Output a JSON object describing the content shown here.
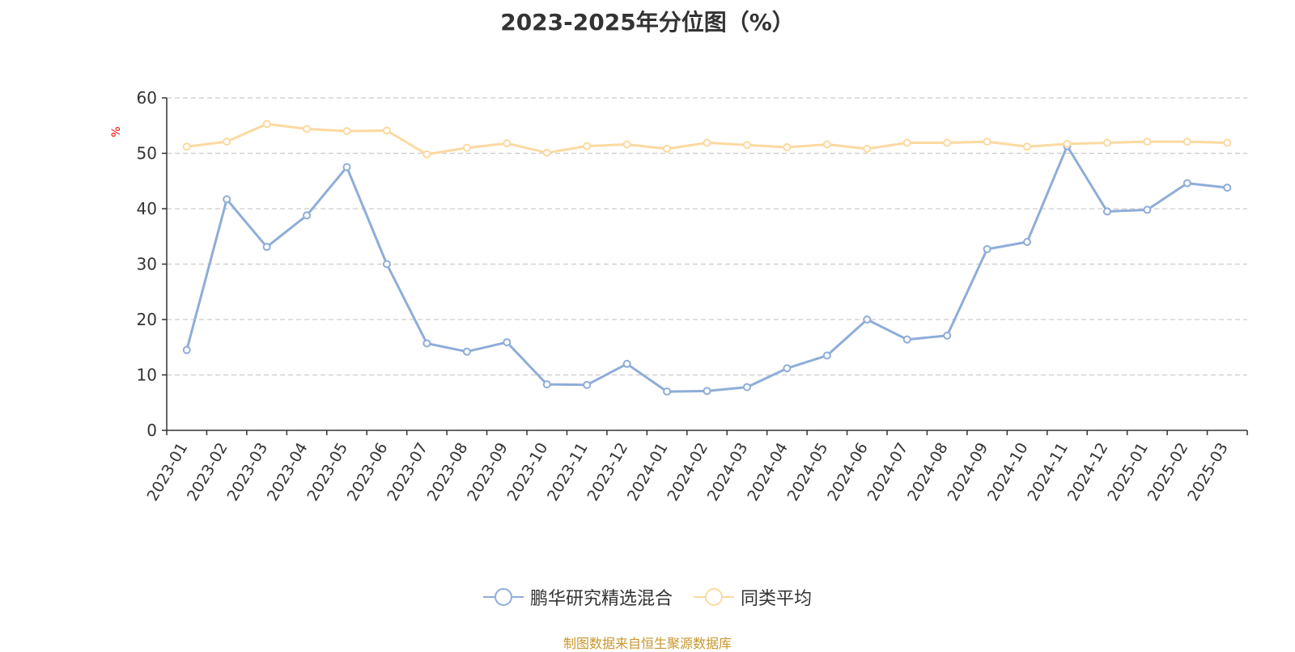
{
  "chart_data": {
    "type": "line",
    "title": "2023-2025年分位图（%）",
    "ylabel": "%",
    "ylim": [
      0,
      60
    ],
    "yticks": [
      0,
      10,
      20,
      30,
      40,
      50,
      60
    ],
    "grid": true,
    "legend_position": "bottom",
    "categories": [
      "2023-01",
      "2023-02",
      "2023-03",
      "2023-04",
      "2023-05",
      "2023-06",
      "2023-07",
      "2023-08",
      "2023-09",
      "2023-10",
      "2023-11",
      "2023-12",
      "2024-01",
      "2024-02",
      "2024-03",
      "2024-04",
      "2024-05",
      "2024-06",
      "2024-07",
      "2024-08",
      "2024-09",
      "2024-10",
      "2024-11",
      "2024-12",
      "2025-01",
      "2025-02",
      "2025-03"
    ],
    "series": [
      {
        "name": "鹏华研究精选混合",
        "color": "#8eadd8",
        "values": [
          14.5,
          41.7,
          33.1,
          38.8,
          47.5,
          30.0,
          15.7,
          14.2,
          15.9,
          8.3,
          8.2,
          12.0,
          7.0,
          7.1,
          7.8,
          11.2,
          13.5,
          20.0,
          16.4,
          17.1,
          32.7,
          34.0,
          51.3,
          39.5,
          39.8,
          44.6,
          43.8
        ]
      },
      {
        "name": "同类平均",
        "color": "#fcd9a0",
        "values": [
          51.2,
          52.1,
          55.3,
          54.4,
          54.0,
          54.1,
          49.8,
          51.0,
          51.8,
          50.1,
          51.3,
          51.6,
          50.8,
          51.9,
          51.5,
          51.1,
          51.6,
          50.8,
          51.9,
          51.9,
          52.1,
          51.2,
          51.7,
          51.9,
          52.1,
          52.1,
          51.9
        ]
      }
    ]
  },
  "source_text": "制图数据来自恒生聚源数据库"
}
